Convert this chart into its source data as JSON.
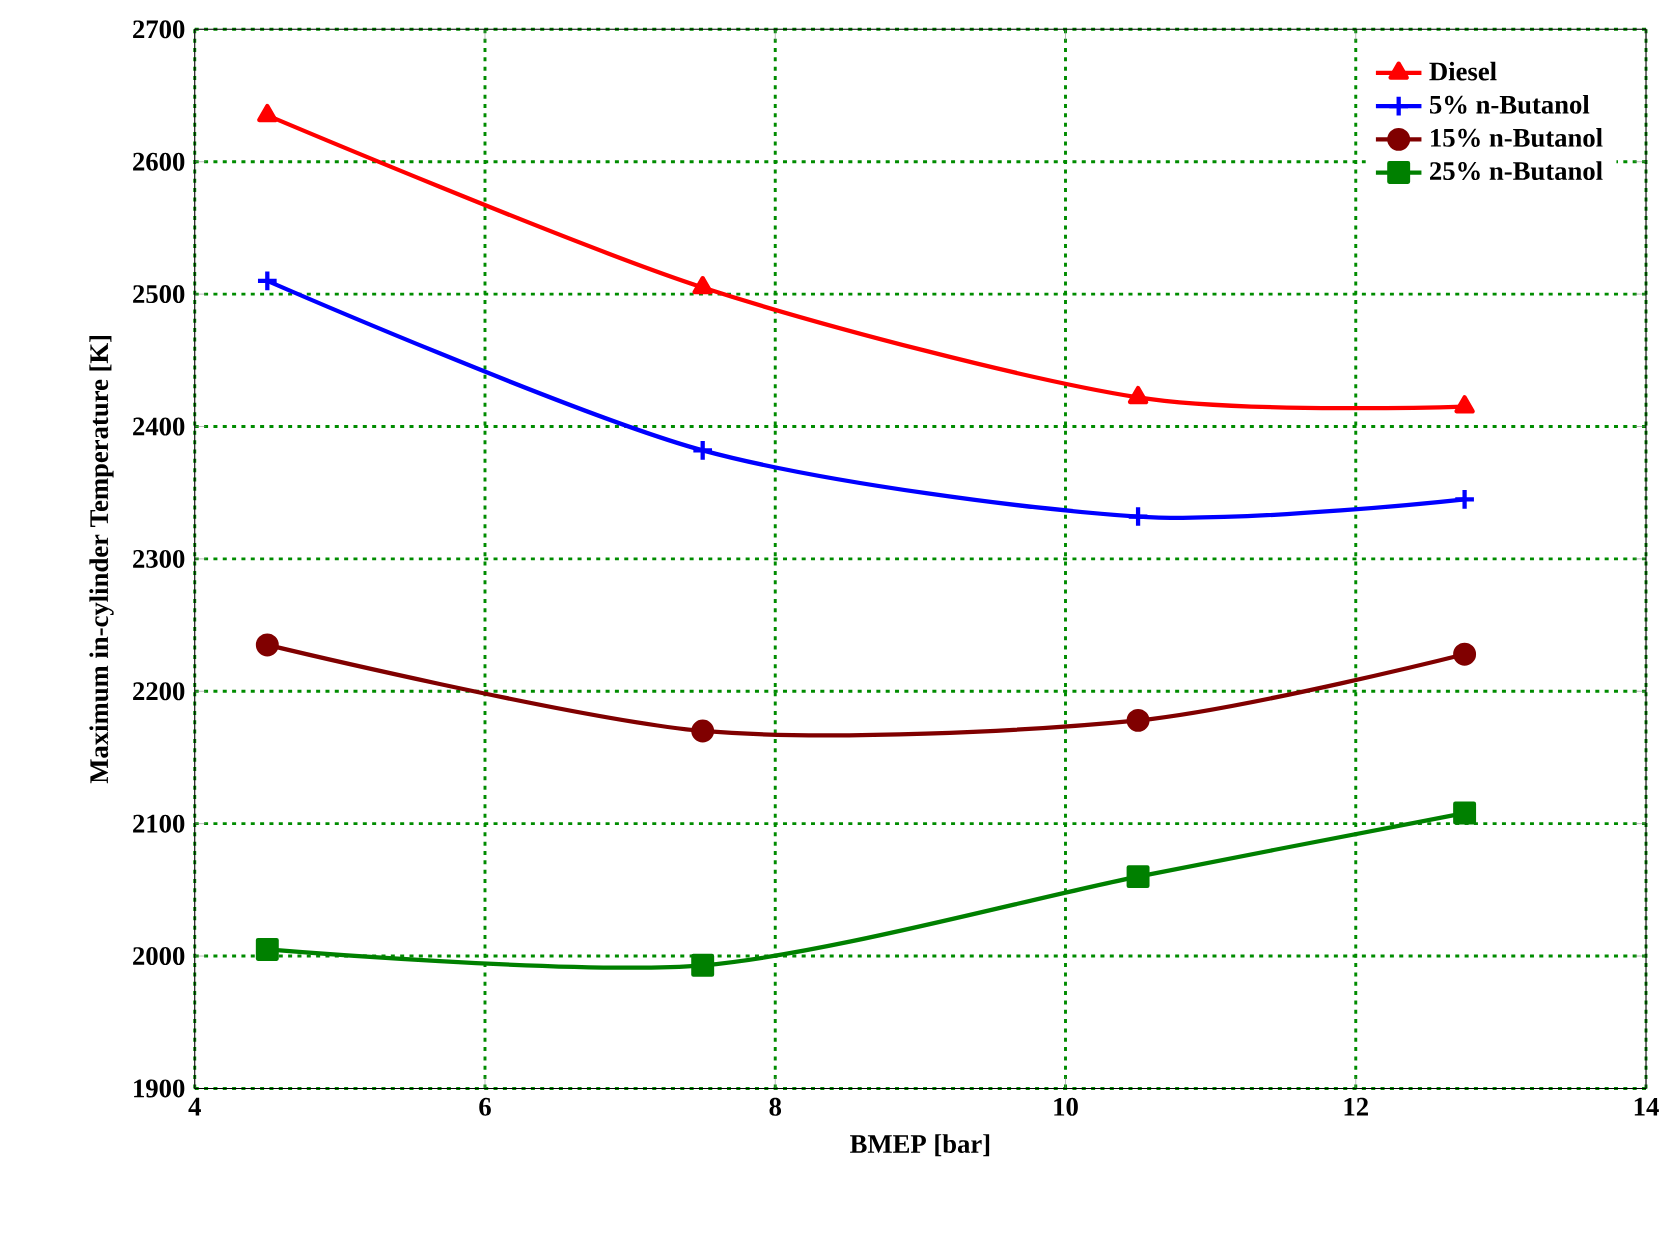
{
  "chart_data": {
    "type": "line",
    "xlabel": "BMEP [bar]",
    "ylabel": "Maximum in-cylinder Temperature [K]",
    "xlim": [
      4,
      14
    ],
    "xticks": [
      4,
      6,
      8,
      10,
      12,
      14
    ],
    "ylim": [
      1900,
      2700
    ],
    "yticks": [
      1900,
      2000,
      2100,
      2200,
      2300,
      2400,
      2500,
      2600,
      2700
    ],
    "grid": true,
    "legend": "top right",
    "line_style": "solid",
    "x": [
      4.5,
      7.5,
      10.5,
      12.75
    ],
    "series": [
      {
        "name": "Diesel",
        "color": "#ff0000",
        "marker": "triangle",
        "values": [
          2635,
          2505,
          2422,
          2415
        ]
      },
      {
        "name": "5% n-Butanol",
        "color": "#0000ff",
        "marker": "cross",
        "values": [
          2510,
          2382,
          2332,
          2345
        ]
      },
      {
        "name": "15% n-Butanol",
        "color": "#800000",
        "marker": "circle",
        "values": [
          2235,
          2170,
          2178,
          2228
        ]
      },
      {
        "name": "25% n-Butanol",
        "color": "#008000",
        "marker": "square",
        "values": [
          2005,
          1993,
          2060,
          2108
        ]
      }
    ]
  }
}
